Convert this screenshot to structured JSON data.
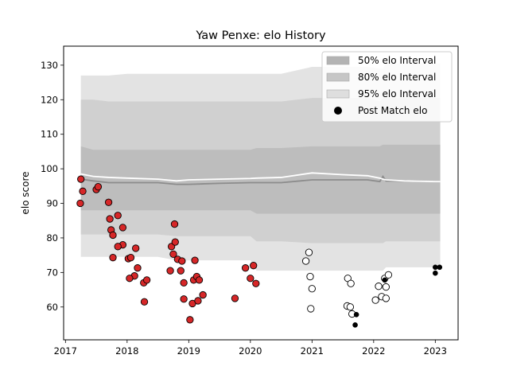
{
  "chart_data": {
    "type": "scatter",
    "title": "Yaw Penxe: elo History",
    "xlabel": "",
    "ylabel": "elo score",
    "xlim": [
      2016.97,
      2023.37
    ],
    "ylim": [
      50.5,
      135.5
    ],
    "x_ticks": [
      2017,
      2018,
      2019,
      2020,
      2021,
      2022,
      2023
    ],
    "x_tick_labels": [
      "2017",
      "2018",
      "2019",
      "2020",
      "2021",
      "2022",
      "2023"
    ],
    "y_ticks": [
      60,
      70,
      80,
      90,
      100,
      110,
      120,
      130
    ],
    "y_tick_labels": [
      "60",
      "70",
      "80",
      "90",
      "100",
      "110",
      "120",
      "130"
    ],
    "grid": false,
    "legend_position": "top-right",
    "legend": [
      {
        "label": "50% elo Interval",
        "kind": "patch",
        "color": "#b3b3b3"
      },
      {
        "label": "80% elo Interval",
        "kind": "patch",
        "color": "#c6c6c6"
      },
      {
        "label": "95% elo Interval",
        "kind": "patch",
        "color": "#dedede"
      },
      {
        "label": "Post Match elo",
        "kind": "marker",
        "color": "#000000"
      }
    ],
    "colors": {
      "band95": "#e3e3e3",
      "band80": "#d0d0d0",
      "band50": "#bdbdbd",
      "median": "#8c8c8c",
      "mean": "#ffffff",
      "red": "#d62728",
      "open": "#ffffff",
      "black": "#000000"
    },
    "bands": {
      "x": [
        2017.25,
        2017.45,
        2017.7,
        2018.0,
        2018.5,
        2018.8,
        2019.0,
        2019.5,
        2020.0,
        2020.1,
        2020.5,
        2021.0,
        2021.5,
        2021.9,
        2022.1,
        2022.15,
        2022.2,
        2022.5,
        2023.0,
        2023.08
      ],
      "lo95": [
        74.5,
        74.5,
        74.5,
        74.5,
        74.5,
        73.5,
        73.5,
        73.5,
        73.5,
        70.5,
        70.5,
        70.5,
        70.5,
        70.5,
        70.5,
        70.5,
        71.5,
        71.5,
        71.5,
        71.5
      ],
      "hi95": [
        127.0,
        127.0,
        127.0,
        127.5,
        127.5,
        127.5,
        127.5,
        127.5,
        127.5,
        127.5,
        127.5,
        129.5,
        129.5,
        129.5,
        129.0,
        129.0,
        130.5,
        130.5,
        130.5,
        130.5
      ],
      "lo80": [
        81.0,
        81.0,
        81.0,
        81.0,
        81.0,
        80.5,
        80.5,
        80.5,
        80.5,
        79.0,
        79.0,
        78.5,
        78.5,
        78.5,
        78.5,
        78.5,
        79.0,
        79.0,
        79.0,
        79.0
      ],
      "hi80": [
        120.0,
        120.0,
        119.5,
        119.5,
        119.5,
        119.5,
        119.5,
        119.5,
        119.5,
        119.5,
        119.5,
        120.5,
        120.5,
        120.5,
        119.5,
        120.5,
        120.5,
        120.5,
        120.5,
        120.5
      ],
      "lo50": [
        88.0,
        88.0,
        88.0,
        88.0,
        88.0,
        88.0,
        88.0,
        88.0,
        88.0,
        87.0,
        87.0,
        87.0,
        87.0,
        87.0,
        87.0,
        87.0,
        87.0,
        87.0,
        87.0,
        87.0
      ],
      "hi50": [
        106.5,
        105.5,
        105.5,
        105.5,
        105.5,
        105.5,
        105.5,
        105.5,
        105.5,
        106.0,
        106.0,
        106.5,
        106.5,
        106.5,
        106.5,
        107.0,
        107.0,
        107.0,
        107.0,
        107.0
      ],
      "median": [
        97.0,
        96.5,
        96.0,
        96.0,
        96.0,
        95.5,
        95.5,
        95.8,
        96.0,
        96.0,
        96.0,
        96.8,
        96.8,
        96.8,
        96.3,
        97.8,
        96.5,
        96.5,
        96.3,
        96.3
      ],
      "mean": [
        98.5,
        97.8,
        97.5,
        97.3,
        97.0,
        96.5,
        96.8,
        97.0,
        97.2,
        97.3,
        97.5,
        98.8,
        98.3,
        98.0,
        97.3,
        97.0,
        96.8,
        96.5,
        96.3,
        96.3
      ]
    },
    "series": [
      {
        "marker": "red",
        "points": [
          [
            2017.25,
            97.0
          ],
          [
            2017.28,
            93.5
          ],
          [
            2017.24,
            90.0
          ],
          [
            2017.5,
            94.0
          ],
          [
            2017.53,
            94.8
          ],
          [
            2017.7,
            90.3
          ],
          [
            2017.72,
            85.5
          ],
          [
            2017.74,
            82.3
          ],
          [
            2017.77,
            80.8
          ],
          [
            2017.85,
            86.5
          ],
          [
            2017.93,
            83.0
          ],
          [
            2017.93,
            78.0
          ],
          [
            2017.85,
            77.5
          ],
          [
            2017.77,
            74.3
          ],
          [
            2018.02,
            74.0
          ],
          [
            2018.06,
            74.3
          ],
          [
            2018.14,
            77.0
          ],
          [
            2018.17,
            71.3
          ],
          [
            2018.12,
            69.0
          ],
          [
            2018.04,
            68.3
          ],
          [
            2018.27,
            67.0
          ],
          [
            2018.32,
            67.8
          ],
          [
            2018.28,
            61.5
          ],
          [
            2018.7,
            70.5
          ],
          [
            2018.72,
            77.5
          ],
          [
            2018.75,
            75.3
          ],
          [
            2018.78,
            78.8
          ],
          [
            2018.77,
            84.0
          ],
          [
            2018.82,
            73.8
          ],
          [
            2018.87,
            70.5
          ],
          [
            2018.89,
            73.3
          ],
          [
            2018.92,
            67.0
          ],
          [
            2018.92,
            62.3
          ],
          [
            2019.02,
            56.3
          ],
          [
            2019.06,
            61.0
          ],
          [
            2019.08,
            67.8
          ],
          [
            2019.1,
            73.5
          ],
          [
            2019.13,
            68.8
          ],
          [
            2019.17,
            67.8
          ],
          [
            2019.15,
            61.8
          ],
          [
            2019.23,
            63.5
          ],
          [
            2019.75,
            62.5
          ],
          [
            2019.92,
            71.3
          ],
          [
            2020.0,
            68.3
          ],
          [
            2020.05,
            72.0
          ],
          [
            2020.09,
            66.8
          ]
        ]
      },
      {
        "marker": "open",
        "points": [
          [
            2020.9,
            73.3
          ],
          [
            2020.95,
            75.8
          ],
          [
            2020.97,
            68.8
          ],
          [
            2021.0,
            65.3
          ],
          [
            2020.98,
            59.5
          ],
          [
            2021.58,
            68.3
          ],
          [
            2021.63,
            66.8
          ],
          [
            2021.57,
            60.3
          ],
          [
            2021.62,
            60.0
          ],
          [
            2021.65,
            58.0
          ],
          [
            2022.03,
            62.0
          ],
          [
            2022.08,
            66.0
          ],
          [
            2022.13,
            63.0
          ],
          [
            2022.2,
            65.8
          ],
          [
            2022.18,
            68.3
          ],
          [
            2022.24,
            69.3
          ],
          [
            2022.2,
            62.5
          ]
        ]
      },
      {
        "marker": "black",
        "points": [
          [
            2021.72,
            57.8
          ],
          [
            2021.7,
            54.8
          ],
          [
            2022.18,
            67.8
          ],
          [
            2023.0,
            71.5
          ],
          [
            2023.07,
            71.5
          ],
          [
            2023.0,
            69.8
          ]
        ]
      }
    ]
  }
}
